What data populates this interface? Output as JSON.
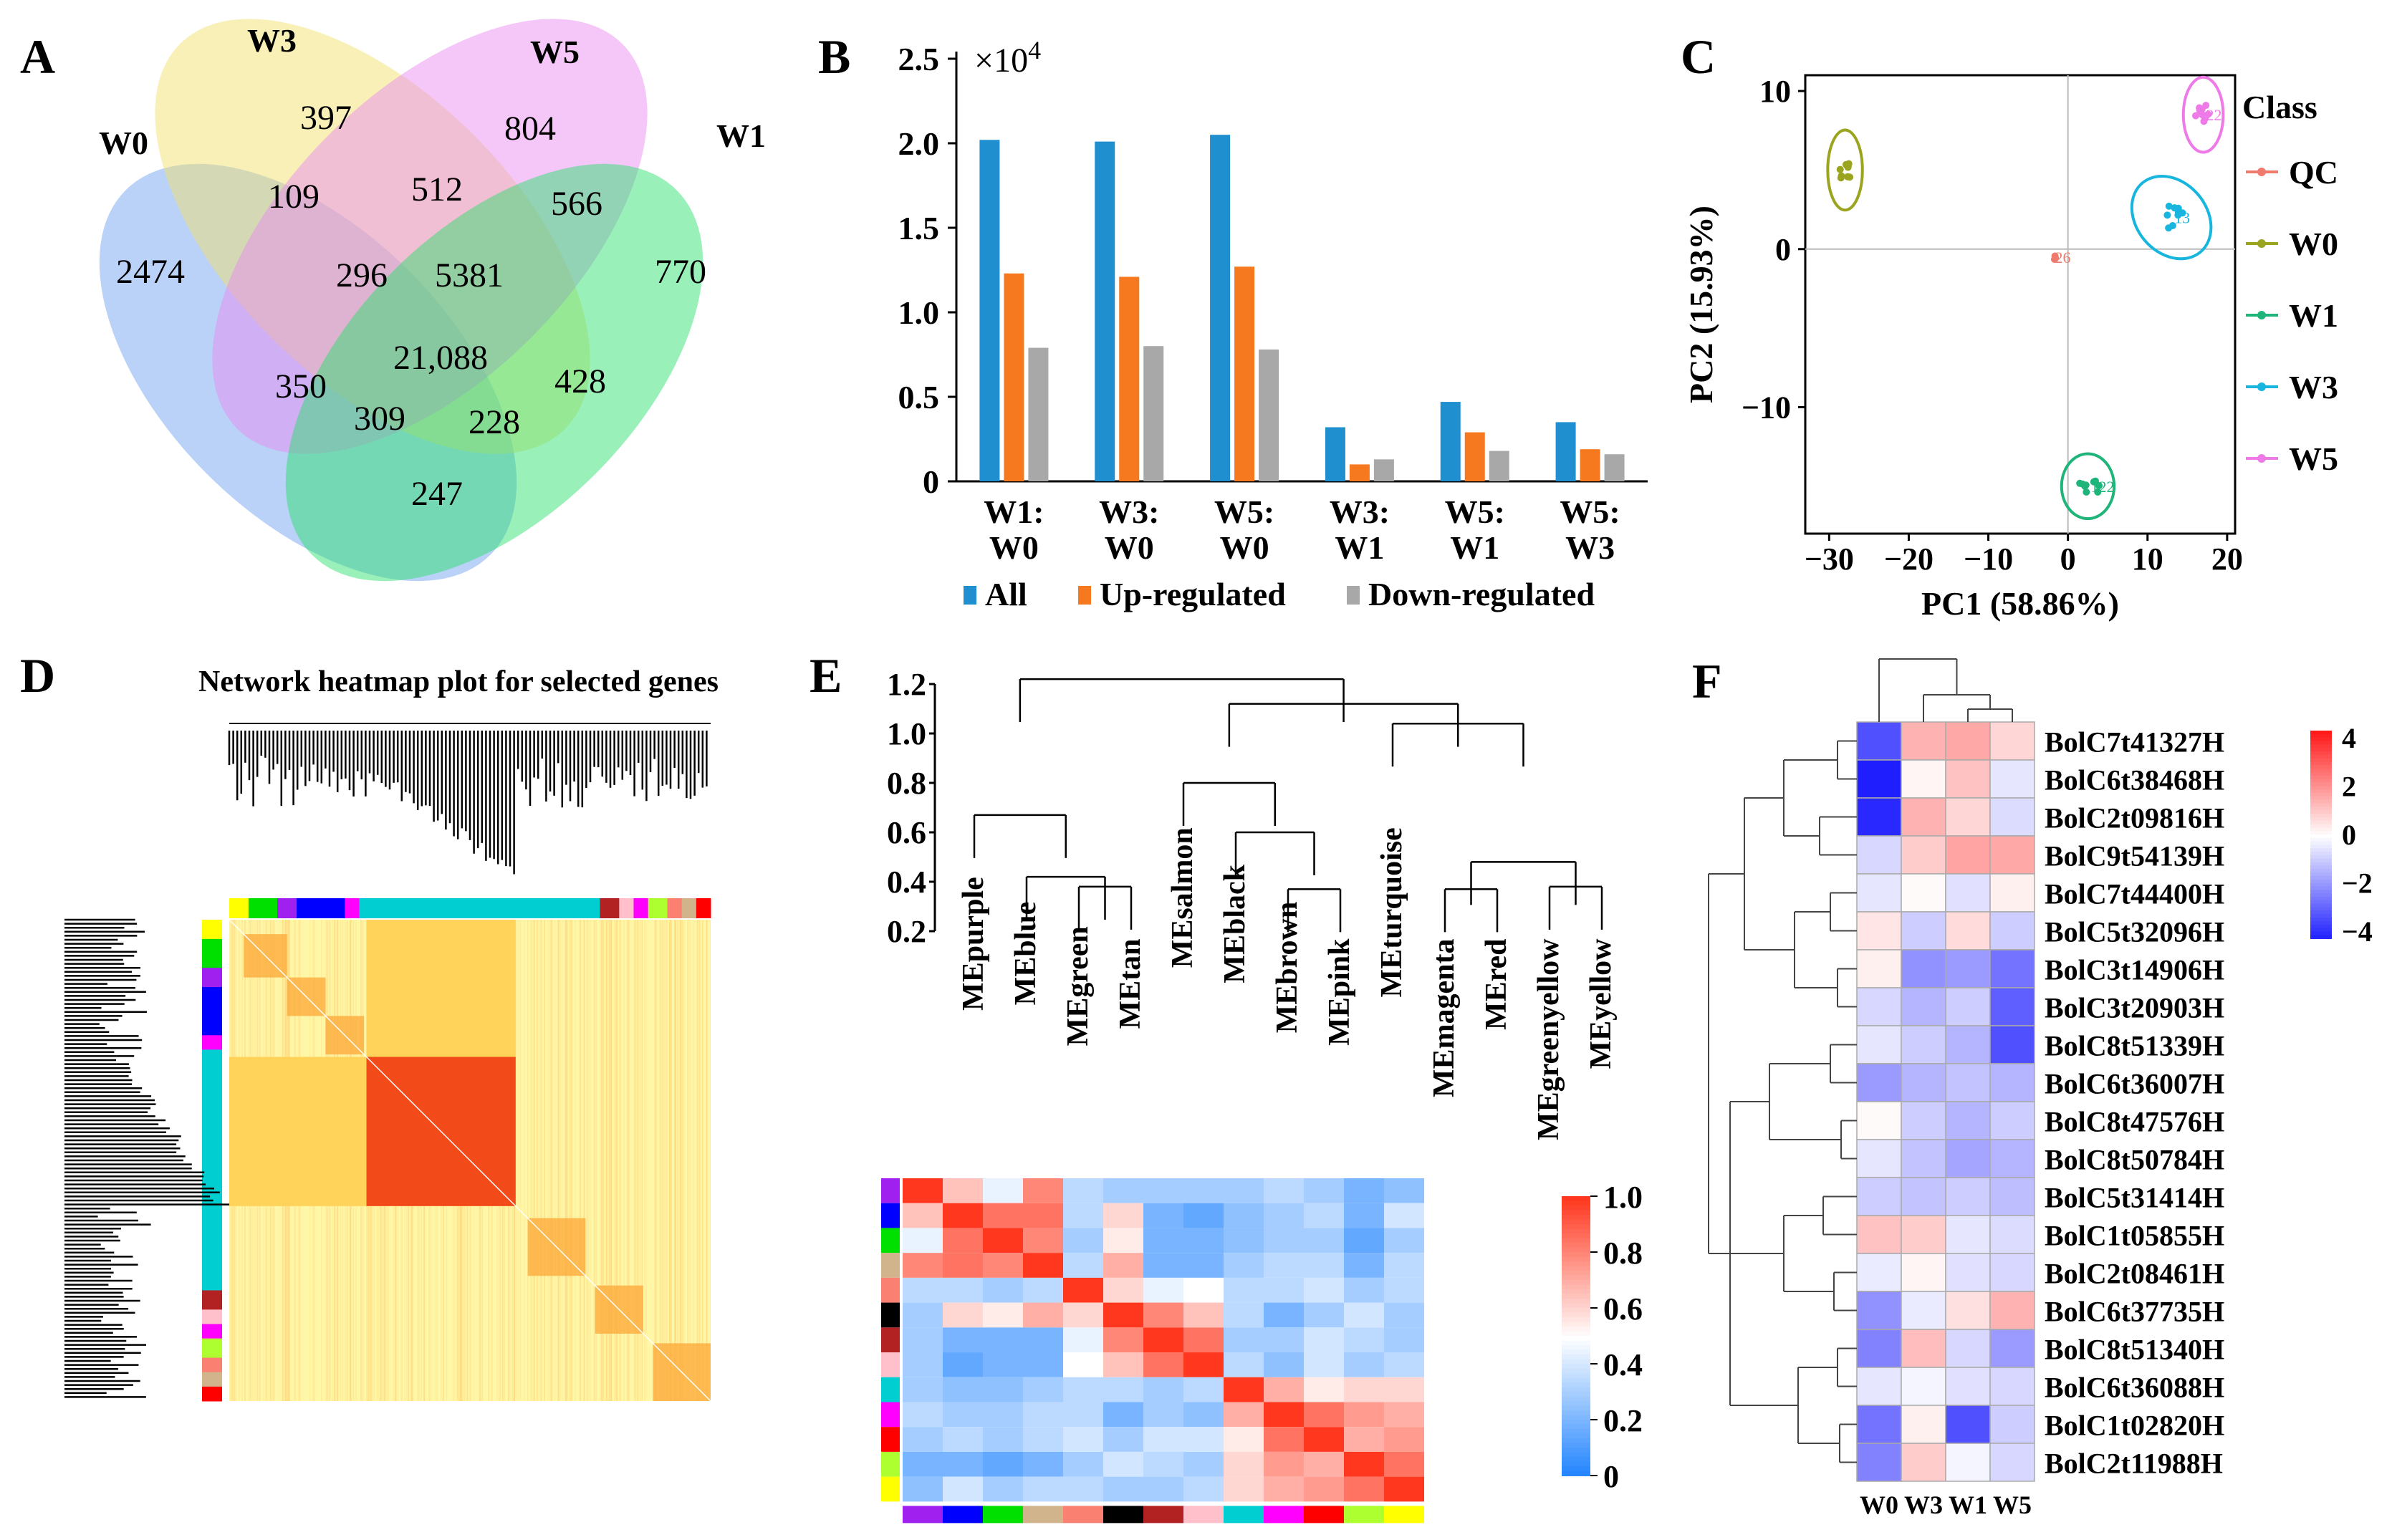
{
  "panel_letters": [
    "A",
    "B",
    "C",
    "D",
    "E",
    "F"
  ],
  "chart_data": [
    {
      "panel": "A",
      "type": "venn",
      "sets": [
        "W0",
        "W3",
        "W5",
        "W1"
      ],
      "set_colors": [
        "#6f9ff0",
        "#f2df6a",
        "#e98af0",
        "#29e06d"
      ],
      "regions": [
        {
          "sets": [
            "W0"
          ],
          "value": "2474"
        },
        {
          "sets": [
            "W3"
          ],
          "value": "397"
        },
        {
          "sets": [
            "W5"
          ],
          "value": "804"
        },
        {
          "sets": [
            "W1"
          ],
          "value": "770"
        },
        {
          "sets": [
            "W0",
            "W3"
          ],
          "value": "109"
        },
        {
          "sets": [
            "W3",
            "W5"
          ],
          "value": "512"
        },
        {
          "sets": [
            "W5",
            "W1"
          ],
          "value": "566"
        },
        {
          "sets": [
            "W0",
            "W3",
            "W5"
          ],
          "value": "296"
        },
        {
          "sets": [
            "W3",
            "W5",
            "W1"
          ],
          "value": "5381"
        },
        {
          "sets": [
            "W0",
            "W5"
          ],
          "value": "350"
        },
        {
          "sets": [
            "W0",
            "W3",
            "W5",
            "W1"
          ],
          "value": "21,088"
        },
        {
          "sets": [
            "W3",
            "W1"
          ],
          "value": "428"
        },
        {
          "sets": [
            "W0",
            "W5",
            "W1"
          ],
          "value": "309"
        },
        {
          "sets": [
            "W0",
            "W3",
            "W1"
          ],
          "value": "228"
        },
        {
          "sets": [
            "W0",
            "W1"
          ],
          "value": "247"
        }
      ]
    },
    {
      "panel": "B",
      "type": "bar",
      "multiplier": "×10",
      "multiplier_exp": "4",
      "ylim": [
        0,
        2.5
      ],
      "yticks": [
        "0",
        "0.5",
        "1.0",
        "1.5",
        "2.0",
        "2.5"
      ],
      "categories": [
        [
          "W1:",
          "W0"
        ],
        [
          "W3:",
          "W0"
        ],
        [
          "W5:",
          "W0"
        ],
        [
          "W3:",
          "W1"
        ],
        [
          "W5:",
          "W1"
        ],
        [
          "W5:",
          "W3"
        ]
      ],
      "series": [
        {
          "name": "All",
          "color": "#1f8fcf",
          "values": [
            2.02,
            2.01,
            2.05,
            0.32,
            0.47,
            0.35
          ]
        },
        {
          "name": "Up-regulated",
          "color": "#f6791f",
          "values": [
            1.23,
            1.21,
            1.27,
            0.1,
            0.29,
            0.19
          ]
        },
        {
          "name": "Down-regulated",
          "color": "#a8a8a8",
          "values": [
            0.79,
            0.8,
            0.78,
            0.13,
            0.18,
            0.16
          ]
        }
      ]
    },
    {
      "panel": "C",
      "type": "scatter",
      "xlabel": "PC1 (58.86%)",
      "ylabel": "PC2 (15.93%)",
      "xlim": [
        -33,
        21
      ],
      "ylim": [
        -18,
        11
      ],
      "xticks": [
        "-30",
        "-20",
        "-10",
        "0",
        "10",
        "20"
      ],
      "xtick_values": [
        -30,
        -20,
        -10,
        0,
        10,
        20
      ],
      "yticks": [
        "10",
        "0",
        "−10"
      ],
      "ytick_values": [
        10,
        0,
        -10
      ],
      "legend_title": "Class",
      "classes": [
        {
          "name": "QC",
          "color": "#f07a6e",
          "center": [
            -2,
            -0.5
          ],
          "spread": [
            1.2,
            0.3
          ],
          "n": 3,
          "ellipse": false,
          "label": "26"
        },
        {
          "name": "W0",
          "color": "#9aa41f",
          "center": [
            -28,
            5
          ],
          "spread": [
            0.8,
            1.3
          ],
          "n": 9,
          "ellipse": true,
          "label": ""
        },
        {
          "name": "W1",
          "color": "#1fb57a",
          "center": [
            2.5,
            -15
          ],
          "spread": [
            1.5,
            1.0
          ],
          "n": 9,
          "ellipse": true,
          "label": "122"
        },
        {
          "name": "W3",
          "color": "#18b6de",
          "center": [
            13,
            2
          ],
          "spread": [
            2.2,
            1.5
          ],
          "n": 9,
          "ellipse": true,
          "label": "13"
        },
        {
          "name": "W5",
          "color": "#ee7ae8",
          "center": [
            17,
            8.5
          ],
          "spread": [
            1.0,
            1.2
          ],
          "n": 9,
          "ellipse": true,
          "label": "22"
        }
      ]
    },
    {
      "panel": "D",
      "type": "heatmap",
      "title": "Network heatmap plot for selected genes"
    },
    {
      "panel": "E",
      "type": "heatmap",
      "dendrogram_yticks": [
        "1.2",
        "1.0",
        "0.8",
        "0.6",
        "0.4",
        "0.2"
      ],
      "modules": [
        "MEpurple",
        "MEblue",
        "MEgreen",
        "MEtan",
        "MEsalmon",
        "MEblack",
        "MEbrown",
        "MEpink",
        "MEturquoise",
        "MEmagenta",
        "MEred",
        "MEgreenyellow",
        "MEyellow"
      ],
      "module_colors": [
        "#a020f0",
        "#0000ff",
        "#00e000",
        "#d2b48c",
        "#fa8072",
        "#000000",
        "#b22222",
        "#ffc0cb",
        "#00ced1",
        "#ff00ff",
        "#ff0000",
        "#adff2f",
        "#ffff00"
      ],
      "colorbar_ticks": [
        "1.0",
        "0.8",
        "0.6",
        "0.4",
        "0.2",
        "0"
      ],
      "matrix": [
        [
          1.0,
          0.65,
          0.45,
          0.8,
          0.35,
          0.3,
          0.3,
          0.3,
          0.3,
          0.35,
          0.3,
          0.2,
          0.25
        ],
        [
          0.65,
          1.0,
          0.85,
          0.85,
          0.35,
          0.6,
          0.2,
          0.15,
          0.25,
          0.3,
          0.35,
          0.2,
          0.4
        ],
        [
          0.45,
          0.85,
          1.0,
          0.8,
          0.3,
          0.55,
          0.2,
          0.2,
          0.25,
          0.3,
          0.3,
          0.15,
          0.3
        ],
        [
          0.8,
          0.85,
          0.8,
          1.0,
          0.35,
          0.7,
          0.2,
          0.2,
          0.3,
          0.35,
          0.35,
          0.2,
          0.35
        ],
        [
          0.35,
          0.35,
          0.3,
          0.35,
          1.0,
          0.6,
          0.45,
          0.5,
          0.35,
          0.35,
          0.4,
          0.3,
          0.35
        ],
        [
          0.3,
          0.6,
          0.55,
          0.7,
          0.6,
          1.0,
          0.8,
          0.65,
          0.35,
          0.2,
          0.3,
          0.4,
          0.3
        ],
        [
          0.3,
          0.2,
          0.2,
          0.2,
          0.45,
          0.8,
          1.0,
          0.85,
          0.3,
          0.3,
          0.4,
          0.35,
          0.3
        ],
        [
          0.3,
          0.15,
          0.2,
          0.2,
          0.5,
          0.65,
          0.85,
          1.0,
          0.35,
          0.25,
          0.4,
          0.3,
          0.35
        ],
        [
          0.3,
          0.25,
          0.25,
          0.3,
          0.35,
          0.35,
          0.3,
          0.35,
          1.0,
          0.7,
          0.55,
          0.6,
          0.6
        ],
        [
          0.35,
          0.3,
          0.3,
          0.35,
          0.35,
          0.2,
          0.3,
          0.25,
          0.7,
          1.0,
          0.85,
          0.75,
          0.7
        ],
        [
          0.3,
          0.35,
          0.3,
          0.35,
          0.4,
          0.3,
          0.4,
          0.4,
          0.55,
          0.85,
          1.0,
          0.7,
          0.75
        ],
        [
          0.2,
          0.2,
          0.15,
          0.2,
          0.3,
          0.4,
          0.35,
          0.3,
          0.6,
          0.75,
          0.7,
          1.0,
          0.85
        ],
        [
          0.25,
          0.4,
          0.3,
          0.35,
          0.35,
          0.3,
          0.3,
          0.35,
          0.6,
          0.7,
          0.75,
          0.85,
          1.0
        ]
      ]
    },
    {
      "panel": "F",
      "type": "heatmap",
      "columns": [
        "W0",
        "W3",
        "W1",
        "W5"
      ],
      "rows": [
        "BolC7t41327H",
        "BolC6t38468H",
        "BolC2t09816H",
        "BolC9t54139H",
        "BolC7t44400H",
        "BolC5t32096H",
        "BolC3t14906H",
        "BolC3t20903H",
        "BolC8t51339H",
        "BolC6t36007H",
        "BolC8t47576H",
        "BolC8t50784H",
        "BolC5t31414H",
        "BolC1t05855H",
        "BolC2t08461H",
        "BolC6t37735H",
        "BolC8t51340H",
        "BolC6t36088H",
        "BolC1t02820H",
        "BolC2t11988H"
      ],
      "colorbar_ticks": [
        "4",
        "2",
        "0",
        "−2",
        "−4"
      ],
      "values": [
        [
          -3.5,
          1.5,
          1.7,
          0.8
        ],
        [
          -4.5,
          0.2,
          1.2,
          -0.5
        ],
        [
          -4.3,
          1.5,
          0.8,
          -0.7
        ],
        [
          -0.8,
          1.0,
          1.8,
          1.7
        ],
        [
          -0.5,
          0.1,
          -0.6,
          0.3
        ],
        [
          0.5,
          -1.0,
          0.7,
          -1.0
        ],
        [
          0.3,
          -2.2,
          -2.0,
          -2.8
        ],
        [
          -0.8,
          -1.5,
          -1.0,
          -3.2
        ],
        [
          -0.5,
          -1.0,
          -1.5,
          -3.5
        ],
        [
          -2.0,
          -1.5,
          -1.2,
          -1.5
        ],
        [
          0.1,
          -1.0,
          -1.5,
          -1.0
        ],
        [
          -0.5,
          -1.2,
          -1.8,
          -1.5
        ],
        [
          -1.0,
          -1.2,
          -1.0,
          -1.3
        ],
        [
          1.2,
          1.0,
          -0.5,
          -0.7
        ],
        [
          -0.4,
          0.2,
          -0.6,
          -0.8
        ],
        [
          -2.2,
          -0.4,
          0.6,
          1.5
        ],
        [
          -2.5,
          1.3,
          -0.8,
          -2.0
        ],
        [
          -0.5,
          -0.2,
          -0.6,
          -0.8
        ],
        [
          -2.8,
          0.3,
          -3.5,
          -1.0
        ],
        [
          -2.5,
          1.0,
          -0.2,
          -0.8
        ]
      ]
    }
  ]
}
